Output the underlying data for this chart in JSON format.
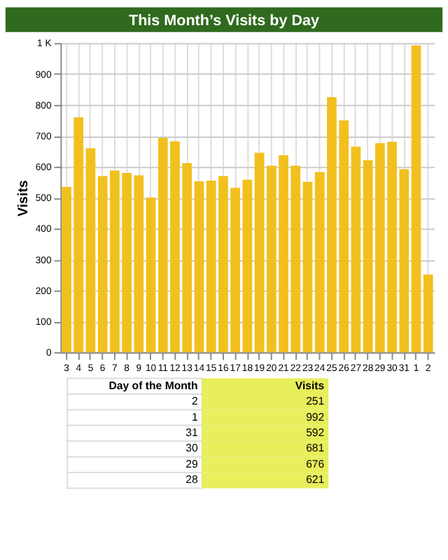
{
  "chart_data": {
    "type": "bar",
    "title": "This Month’s Visits by Day",
    "ylabel": "Visits",
    "categories": [
      "3",
      "4",
      "5",
      "6",
      "7",
      "8",
      "9",
      "10",
      "11",
      "12",
      "13",
      "14",
      "15",
      "16",
      "17",
      "18",
      "19",
      "20",
      "21",
      "22",
      "23",
      "24",
      "25",
      "26",
      "27",
      "28",
      "29",
      "30",
      "31",
      "1",
      "2"
    ],
    "values": [
      535,
      760,
      660,
      570,
      588,
      580,
      572,
      500,
      693,
      682,
      612,
      553,
      555,
      570,
      532,
      558,
      645,
      603,
      637,
      603,
      551,
      583,
      825,
      750,
      665,
      621,
      676,
      681,
      592,
      992,
      251
    ],
    "annotations": [
      "Day of the Month",
      "Visits",
      "2",
      "251",
      "1",
      "992",
      "31",
      "592",
      "30",
      "681",
      "29",
      "676",
      "28",
      "621"
    ],
    "color": "#f2c01e",
    "ylim": [
      0,
      1000
    ],
    "yticks": [
      0,
      100,
      200,
      300,
      400,
      500,
      600,
      700,
      800,
      900,
      {
        "value": 1000,
        "label": "1 K"
      }
    ],
    "grid": true
  }
}
